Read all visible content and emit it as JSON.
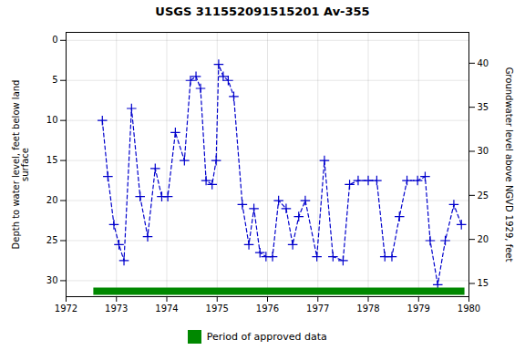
{
  "chart_data": {
    "type": "line",
    "title": "USGS 311552091515201 Av-355",
    "ylabel": "Depth to water level, feet below land\nsurface",
    "y2label": "Groundwater level above NGVD 1929, feet",
    "x": [
      1972.72,
      1972.83,
      1972.95,
      1973.05,
      1973.15,
      1973.3,
      1973.47,
      1973.62,
      1973.77,
      1973.9,
      1974.02,
      1974.17,
      1974.35,
      1974.47,
      1974.58,
      1974.67,
      1974.78,
      1974.9,
      1974.98,
      1975.03,
      1975.12,
      1975.22,
      1975.33,
      1975.5,
      1975.63,
      1975.73,
      1975.85,
      1975.97,
      1976.1,
      1976.22,
      1976.37,
      1976.5,
      1976.62,
      1976.75,
      1976.98,
      1977.13,
      1977.3,
      1977.5,
      1977.63,
      1977.8,
      1978.0,
      1978.17,
      1978.33,
      1978.47,
      1978.62,
      1978.77,
      1978.98,
      1979.13,
      1979.23,
      1979.38,
      1979.53,
      1979.7,
      1979.85
    ],
    "values": [
      10,
      17,
      23,
      25.5,
      27.5,
      8.5,
      19.5,
      24.5,
      16,
      19.5,
      19.5,
      11.5,
      15,
      5,
      4.5,
      6,
      17.5,
      18,
      15,
      3,
      4.5,
      5,
      7,
      20.5,
      25.5,
      21,
      26.5,
      27,
      27,
      20,
      21,
      25.5,
      22,
      20,
      27,
      15,
      27,
      27.5,
      18,
      17.5,
      17.5,
      17.5,
      27,
      27,
      22,
      17.5,
      17.5,
      17,
      25,
      30.5,
      25,
      20.5,
      23
    ],
    "color": "#0000cc",
    "line_style": "dashed",
    "marker": "plus",
    "xlim": [
      1972,
      1980
    ],
    "xticks": [
      1972,
      1973,
      1974,
      1975,
      1976,
      1977,
      1978,
      1979,
      1980
    ],
    "ylim": [
      32,
      -1
    ],
    "yticks": [
      0,
      5,
      10,
      15,
      20,
      25,
      30
    ],
    "y2lim": [
      13.5,
      43.5
    ],
    "y2ticks": [
      15,
      20,
      25,
      30,
      35,
      40
    ],
    "grid": true,
    "legend": "bottom",
    "periods": [
      {
        "name": "Period of approved data",
        "color": "#008800",
        "start": 1972.55,
        "end": 1979.92
      }
    ]
  }
}
